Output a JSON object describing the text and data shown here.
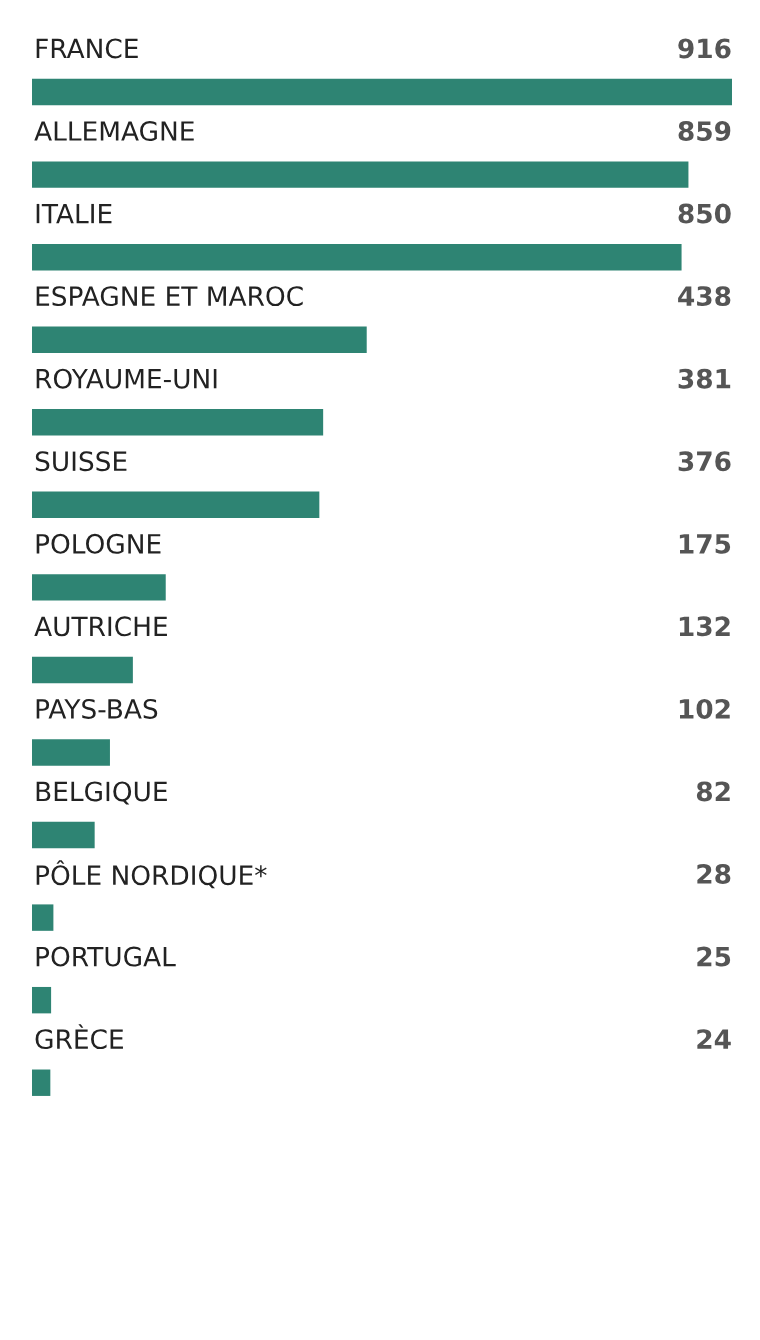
{
  "chart_data": {
    "type": "bar",
    "orientation": "horizontal",
    "categories": [
      "FRANCE",
      "ALLEMAGNE",
      "ITALIE",
      "ESPAGNE ET MAROC",
      "ROYAUME-UNI",
      "SUISSE",
      "POLOGNE",
      "AUTRICHE",
      "PAYS-BAS",
      "BELGIQUE",
      "PÔLE NORDIQUE*",
      "PORTUGAL",
      "GRÈCE"
    ],
    "values": [
      916,
      859,
      850,
      438,
      381,
      376,
      175,
      132,
      102,
      82,
      28,
      25,
      24
    ],
    "color": "#2e8473",
    "xlim": [
      0,
      916
    ],
    "data_labels": true
  }
}
